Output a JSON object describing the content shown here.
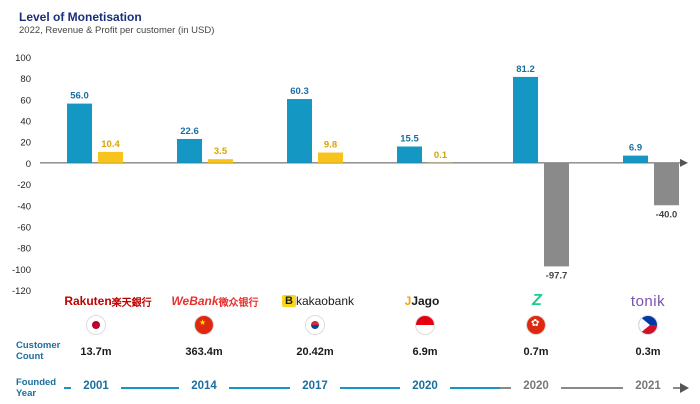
{
  "header": {
    "title": "Level of Monetisation",
    "subtitle": "2022, Revenue & Profit per customer (in USD)"
  },
  "chart_data": {
    "type": "bar",
    "title": "Level of Monetisation",
    "subtitle": "2022, Revenue & Profit per customer (in USD)",
    "ylim": [
      -120,
      100
    ],
    "yticks": [
      100,
      80,
      60,
      40,
      20,
      0,
      -20,
      -40,
      -60,
      -80,
      -100,
      -120
    ],
    "categories": [
      "Rakuten 楽天銀行",
      "WeBank 微众银行",
      "kakaobank",
      "Jago",
      "Z",
      "tonik"
    ],
    "series": [
      {
        "values": [
          56.0,
          22.6,
          60.3,
          15.5,
          81.2,
          6.9
        ],
        "labels": [
          "56.0",
          "22.6",
          "60.3",
          "15.5",
          "81.2",
          "6.9"
        ]
      },
      {
        "values": [
          10.4,
          3.5,
          9.8,
          0.1,
          -97.7,
          -40.0
        ],
        "labels": [
          "10.4",
          "3.5",
          "9.8",
          "0.1",
          "-97.7",
          "-40.0"
        ]
      }
    ],
    "colors": {
      "revenue": "#1497c2",
      "profit": "#f7c31c",
      "loss": "#8a8a8a"
    },
    "grid": false
  },
  "banks": [
    {
      "logo_a": "Rakuten",
      "logo_b": " 楽天銀行",
      "flag": "japan-flag",
      "count": "13.7m",
      "year": "2001"
    },
    {
      "logo_a": "WeBank",
      "logo_b": " 微众银行",
      "flag": "china-flag",
      "count": "363.4m",
      "year": "2014"
    },
    {
      "logo_a": "B",
      "logo_b": " kakaobank",
      "flag": "south-korea-flag",
      "count": "20.42m",
      "year": "2017"
    },
    {
      "logo_a": "J",
      "logo_b": " Jago",
      "flag": "indonesia-flag",
      "count": "6.9m",
      "year": "2020"
    },
    {
      "logo_a": "Z",
      "logo_b": "",
      "flag": "hong-kong-flag",
      "count": "0.7m",
      "year": "2020"
    },
    {
      "logo_a": "tonik",
      "logo_b": "",
      "flag": "philippines-flag",
      "count": "0.3m",
      "year": "2021"
    }
  ],
  "rows": {
    "customer_1": "Customer",
    "customer_2": "Count",
    "founded_1": "Founded",
    "founded_2": "Year"
  }
}
